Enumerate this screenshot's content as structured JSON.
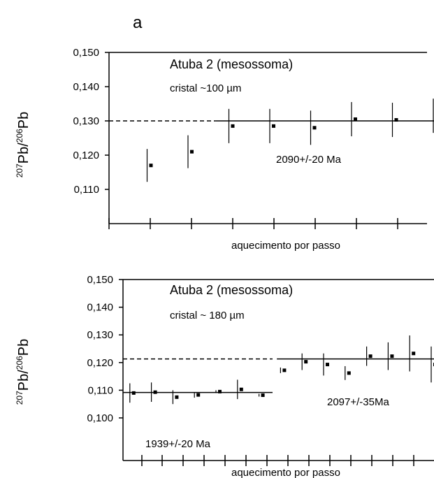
{
  "panel_letter": "a",
  "chart_data": [
    {
      "type": "scatter",
      "title": "Atuba 2 (mesossoma)",
      "subtitle": "cristal ~100 µm",
      "ylabel": "207Pb/206Pb",
      "xlabel": "aquecimento por passo",
      "ylim": [
        0.1,
        0.15
      ],
      "yticks": [
        "0,150",
        "0,140",
        "0,130",
        "0,120",
        "0,110"
      ],
      "ytick_values": [
        0.15,
        0.14,
        0.13,
        0.12,
        0.11
      ],
      "x_steps": 8,
      "points": [
        {
          "step": 1,
          "y": 0.117,
          "err": 0.0048
        },
        {
          "step": 2,
          "y": 0.121,
          "err": 0.0048
        },
        {
          "step": 3,
          "y": 0.1285,
          "err": 0.005
        },
        {
          "step": 4,
          "y": 0.1285,
          "err": 0.005
        },
        {
          "step": 5,
          "y": 0.128,
          "err": 0.005
        },
        {
          "step": 6,
          "y": 0.1305,
          "err": 0.005
        },
        {
          "step": 7,
          "y": 0.1303,
          "err": 0.005
        },
        {
          "step": 8,
          "y": 0.1315,
          "err": 0.005
        }
      ],
      "mean_lines": [
        {
          "y": 0.13,
          "from_step": 0,
          "to_step": 2.6,
          "style": "dashed"
        },
        {
          "y": 0.13,
          "from_step": 2.6,
          "to_step": 8.2,
          "style": "solid"
        }
      ],
      "annotations": [
        "2090+/-20 Ma"
      ]
    },
    {
      "type": "scatter",
      "title": "Atuba 2 (mesossoma)",
      "subtitle": "cristal ~ 180 µm",
      "ylabel": "207Pb/206Pb",
      "xlabel": "aquecimento por passo",
      "ylim": [
        0.095,
        0.15
      ],
      "yticks": [
        "0,150",
        "0,140",
        "0,130",
        "0,120",
        "0,110",
        "0,100"
      ],
      "ytick_values": [
        0.15,
        0.14,
        0.13,
        0.12,
        0.11,
        0.1
      ],
      "x_steps": 15,
      "points": [
        {
          "step": 1,
          "y": 0.109,
          "err": 0.0035
        },
        {
          "step": 2,
          "y": 0.1093,
          "err": 0.0035
        },
        {
          "step": 3,
          "y": 0.1075,
          "err": 0.0025
        },
        {
          "step": 4,
          "y": 0.1083,
          "err": 0.001
        },
        {
          "step": 5,
          "y": 0.1095,
          "err": 0.0005
        },
        {
          "step": 6,
          "y": 0.1103,
          "err": 0.0035
        },
        {
          "step": 7,
          "y": 0.1082,
          "err": 0.0005
        },
        {
          "step": 8,
          "y": 0.1172,
          "err": 0.001
        },
        {
          "step": 9,
          "y": 0.1203,
          "err": 0.003
        },
        {
          "step": 10,
          "y": 0.1193,
          "err": 0.004
        },
        {
          "step": 11,
          "y": 0.1162,
          "err": 0.0025
        },
        {
          "step": 12,
          "y": 0.1223,
          "err": 0.0035
        },
        {
          "step": 13,
          "y": 0.1223,
          "err": 0.005
        },
        {
          "step": 14,
          "y": 0.1233,
          "err": 0.0065
        },
        {
          "step": 15,
          "y": 0.1193,
          "err": 0.0065
        }
      ],
      "mean_lines": [
        {
          "y": 0.1092,
          "from_step": 0,
          "to_step": 7.5,
          "style": "solid"
        },
        {
          "y": 0.1213,
          "from_step": 0,
          "to_step": 7.5,
          "style": "dashed"
        },
        {
          "y": 0.1213,
          "from_step": 7.7,
          "to_step": 15.3,
          "style": "solid"
        }
      ],
      "annotations": [
        "1939+/-20 Ma",
        "2097+/-35Ma"
      ]
    }
  ]
}
